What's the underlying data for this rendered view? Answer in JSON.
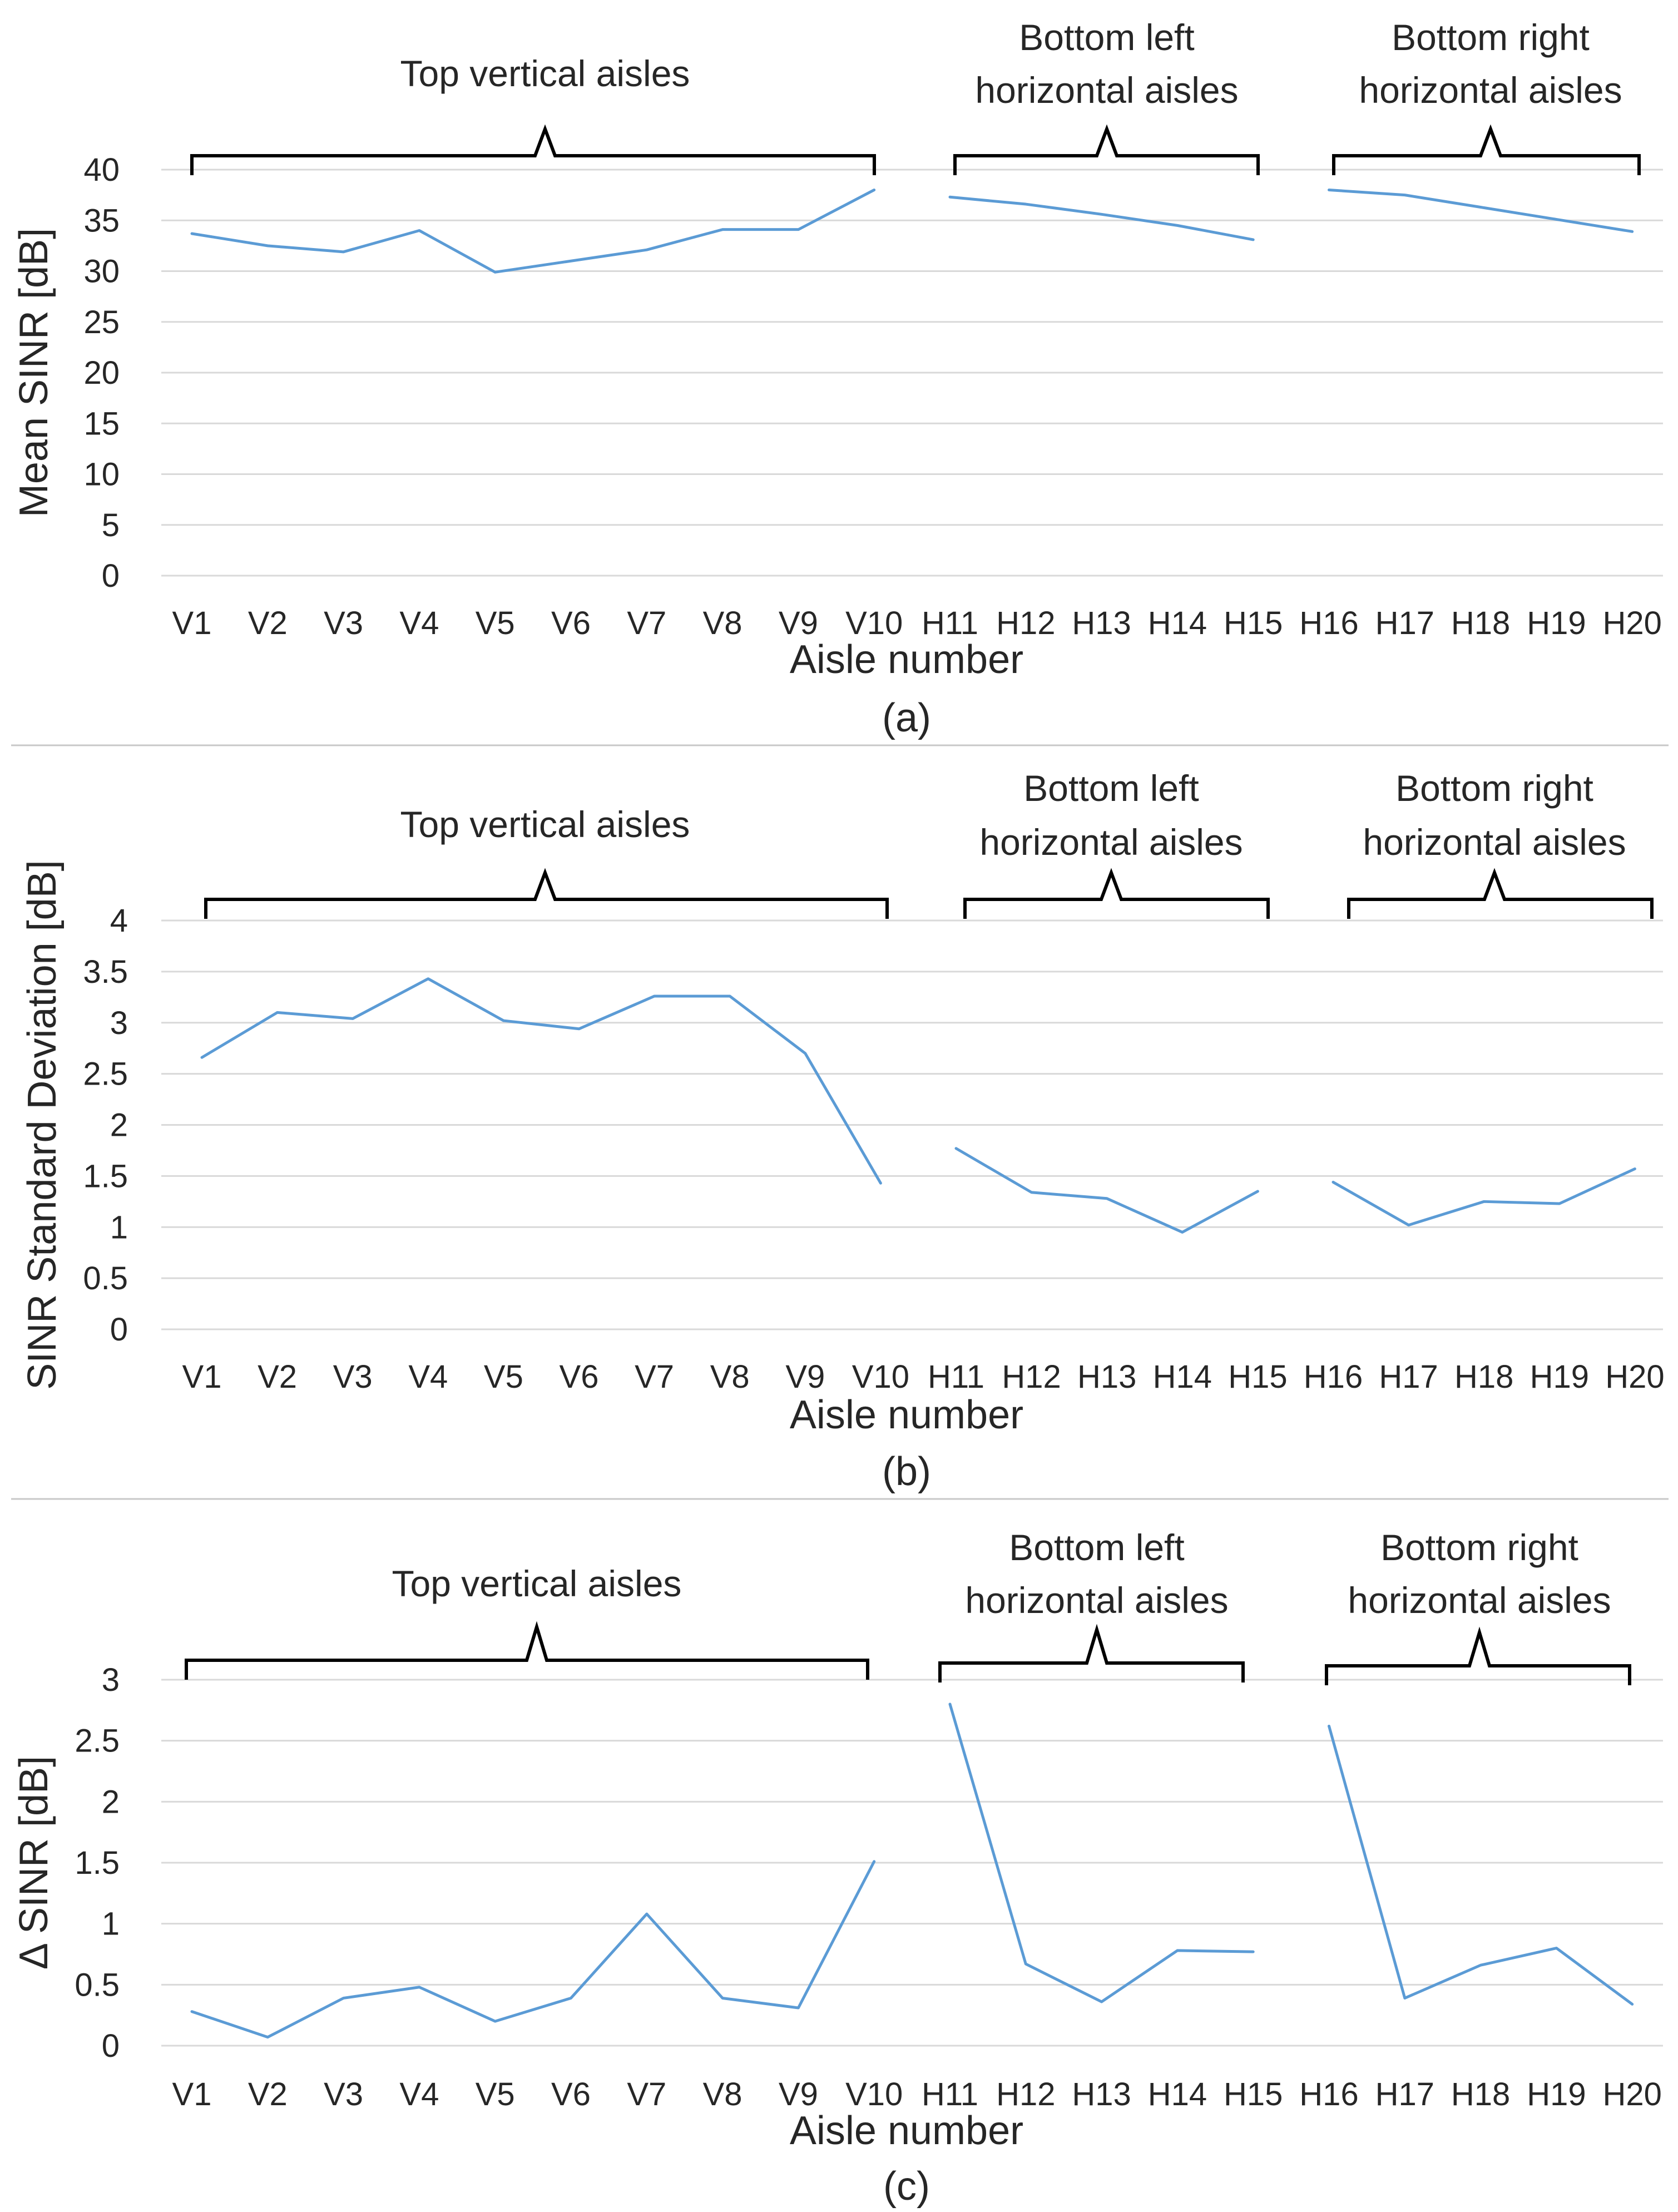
{
  "chart_data": [
    {
      "type": "line",
      "panel_label": "(a)",
      "xlabel": "Aisle number",
      "ylabel": "Mean SINR [dB]",
      "ylim": [
        0,
        40
      ],
      "yticks": [
        "0",
        "5",
        "10",
        "15",
        "20",
        "25",
        "30",
        "35",
        "40"
      ],
      "grid": true,
      "categories": [
        "V1",
        "V2",
        "V3",
        "V4",
        "V5",
        "V6",
        "V7",
        "V8",
        "V9",
        "V10",
        "H11",
        "H12",
        "H13",
        "H14",
        "H15",
        "H16",
        "H17",
        "H18",
        "H19",
        "H20"
      ],
      "segments": [
        {
          "name": "Top vertical aisles",
          "from": 0,
          "to": 9,
          "values": [
            33.7,
            32.5,
            31.9,
            34.0,
            29.9,
            31.0,
            32.1,
            34.1,
            34.1,
            38.0
          ]
        },
        {
          "name": "Bottom left horizontal aisles",
          "from": 10,
          "to": 14,
          "values": [
            37.3,
            36.6,
            35.6,
            34.5,
            33.1
          ]
        },
        {
          "name": "Bottom right horizontal aisles",
          "from": 15,
          "to": 19,
          "values": [
            38.0,
            37.5,
            36.3,
            35.1,
            33.9
          ]
        }
      ],
      "groups": [
        {
          "label_lines": [
            "Top vertical aisles"
          ]
        },
        {
          "label_lines": [
            "Bottom left",
            "horizontal aisles"
          ]
        },
        {
          "label_lines": [
            "Bottom right",
            "horizontal aisles"
          ]
        }
      ],
      "color": "#5b9bd5"
    },
    {
      "type": "line",
      "panel_label": "(b)",
      "xlabel": "Aisle number",
      "ylabel": "SINR Standard Deviation [dB]",
      "ylim": [
        0,
        4
      ],
      "yticks": [
        "0",
        "0.5",
        "1",
        "1.5",
        "2",
        "2.5",
        "3",
        "3.5",
        "4"
      ],
      "grid": true,
      "categories": [
        "V1",
        "V2",
        "V3",
        "V4",
        "V5",
        "V6",
        "V7",
        "V8",
        "V9",
        "V10",
        "H11",
        "H12",
        "H13",
        "H14",
        "H15",
        "H16",
        "H17",
        "H18",
        "H19",
        "H20"
      ],
      "segments": [
        {
          "name": "Top vertical aisles",
          "from": 0,
          "to": 9,
          "values": [
            2.66,
            3.1,
            3.04,
            3.43,
            3.02,
            2.94,
            3.26,
            3.26,
            2.7,
            1.43
          ]
        },
        {
          "name": "Bottom left horizontal aisles",
          "from": 10,
          "to": 14,
          "values": [
            1.77,
            1.34,
            1.28,
            0.95,
            1.35
          ]
        },
        {
          "name": "Bottom right horizontal aisles",
          "from": 15,
          "to": 19,
          "values": [
            1.44,
            1.02,
            1.25,
            1.23,
            1.57
          ]
        }
      ],
      "groups": [
        {
          "label_lines": [
            "Top vertical aisles"
          ]
        },
        {
          "label_lines": [
            "Bottom left",
            "horizontal aisles"
          ]
        },
        {
          "label_lines": [
            "Bottom right",
            "horizontal aisles"
          ]
        }
      ],
      "color": "#5b9bd5"
    },
    {
      "type": "line",
      "panel_label": "(c)",
      "xlabel": "Aisle number",
      "ylabel": "Δ SINR [dB]",
      "ylim": [
        0,
        3
      ],
      "yticks": [
        "0",
        "0.5",
        "1",
        "1.5",
        "2",
        "2.5",
        "3"
      ],
      "grid": true,
      "categories": [
        "V1",
        "V2",
        "V3",
        "V4",
        "V5",
        "V6",
        "V7",
        "V8",
        "V9",
        "V10",
        "H11",
        "H12",
        "H13",
        "H14",
        "H15",
        "H16",
        "H17",
        "H18",
        "H19",
        "H20"
      ],
      "segments": [
        {
          "name": "Top vertical aisles",
          "from": 0,
          "to": 9,
          "values": [
            0.28,
            0.07,
            0.39,
            0.48,
            0.2,
            0.39,
            1.08,
            0.39,
            0.31,
            1.51
          ]
        },
        {
          "name": "Bottom left horizontal aisles",
          "from": 10,
          "to": 14,
          "values": [
            2.8,
            0.67,
            0.36,
            0.78,
            0.77
          ]
        },
        {
          "name": "Bottom right horizontal aisles",
          "from": 15,
          "to": 19,
          "values": [
            2.62,
            0.39,
            0.66,
            0.8,
            0.34
          ]
        }
      ],
      "groups": [
        {
          "label_lines": [
            "Top vertical aisles"
          ]
        },
        {
          "label_lines": [
            "Bottom left",
            "horizontal aisles"
          ]
        },
        {
          "label_lines": [
            "Bottom right",
            "horizontal aisles"
          ]
        }
      ],
      "color": "#5b9bd5"
    }
  ]
}
